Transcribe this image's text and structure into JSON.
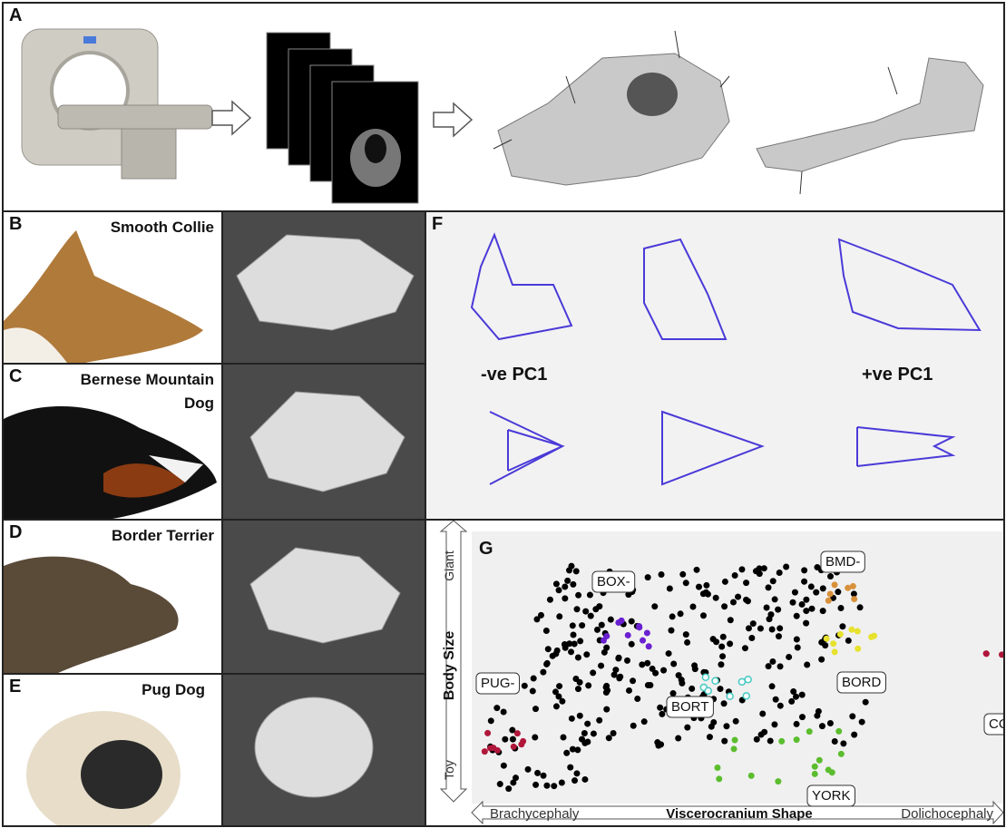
{
  "panels": {
    "A": {
      "label": "A"
    },
    "B": {
      "label": "B",
      "breed": "Smooth Collie"
    },
    "C": {
      "label": "C",
      "breed_line1": "Bernese Mountain",
      "breed_line2": "Dog"
    },
    "D": {
      "label": "D",
      "breed": "Border Terrier"
    },
    "E": {
      "label": "E",
      "breed": "Pug Dog"
    },
    "F": {
      "label": "F",
      "neg_label": "-ve PC1",
      "pos_label": "+ve PC1"
    },
    "G": {
      "label": "G"
    }
  },
  "chart_data": {
    "type": "scatter",
    "xlabel": "Viscerocranium Shape",
    "x_left": "Brachycephaly",
    "x_right": "Dolichocephaly",
    "ylabel": "Body Size",
    "y_top": "Giant",
    "y_bottom": "Toy",
    "groups": [
      {
        "name": "PUG-",
        "color": "#b0173a"
      },
      {
        "name": "BOX-",
        "color": "#6a1fd1"
      },
      {
        "name": "BORT",
        "color": "#45c9c0"
      },
      {
        "name": "YORK",
        "color": "#5bbd2e"
      },
      {
        "name": "BMD-",
        "color": "#d8903a"
      },
      {
        "name": "BORD",
        "color": "#e6e22e"
      },
      {
        "name": "COLL",
        "color": "#b0173a"
      }
    ]
  }
}
